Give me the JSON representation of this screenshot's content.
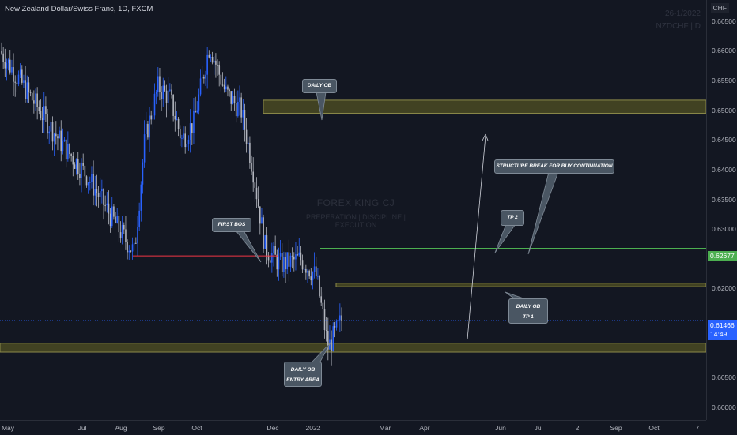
{
  "header": {
    "title": "New Zealand Dollar/Swiss Franc, 1D, FXCM",
    "currency": "CHF",
    "meta_date": "26-1/2022",
    "meta_symbol": "NZDCHF | D"
  },
  "watermark": {
    "name": "FOREX KING CJ",
    "tagline": "PREPERATION  |  DISCIPLINE  |  EXECUTION"
  },
  "annotations": {
    "daily_ob_top": "DAILY OB",
    "first_bos": "FIRST BOS",
    "structure_break": "STRUCTURE BREAK FOR BUY CONTINUATION",
    "tp2": "TP 2",
    "daily_ob_tp1_line1": "DAILY OB",
    "daily_ob_tp1_line2": "TP 1",
    "daily_ob_entry_line1": "DAILY OB",
    "daily_ob_entry_line2": "ENTRY AREA"
  },
  "price_tags": {
    "tp2_price": "0.62677",
    "last_price": "0.61466",
    "countdown": "14:49"
  },
  "colors": {
    "background": "#131722",
    "bull": "#2962ff",
    "bear": "#b2b5be",
    "zone_fill": "#4a4a22",
    "zone_border": "#8c8a4a",
    "tp_line": "#4caf50",
    "bos_line": "#f23645",
    "last_price": "#2962ff"
  },
  "chart_data": {
    "type": "candlestick",
    "title": "New Zealand Dollar/Swiss Franc, 1D, FXCM",
    "ylim": [
      0.6,
      0.667
    ],
    "y_ticks": [
      "0.66500",
      "0.66000",
      "0.65500",
      "0.65000",
      "0.64500",
      "0.64000",
      "0.63500",
      "0.63000",
      "0.62500",
      "0.62000",
      "0.60500",
      "0.60000"
    ],
    "x_ticks": [
      "May",
      "Jul",
      "Aug",
      "Sep",
      "Oct",
      "Dec",
      "2022",
      "Mar",
      "Apr",
      "Jun",
      "Jul",
      "2",
      "Sep",
      "Oct",
      "7"
    ],
    "price_path": [
      {
        "x": "May",
        "y": 0.66
      },
      {
        "x": "Jun",
        "y": 0.652
      },
      {
        "x": "Jul",
        "y": 0.644
      },
      {
        "x": "mid-Jul",
        "y": 0.639
      },
      {
        "x": "Aug",
        "y": 0.63
      },
      {
        "x": "mid-Aug",
        "y": 0.626
      },
      {
        "x": "late-Aug",
        "y": 0.645
      },
      {
        "x": "Sep",
        "y": 0.654
      },
      {
        "x": "mid-Sep",
        "y": 0.652
      },
      {
        "x": "late-Sep",
        "y": 0.645
      },
      {
        "x": "Oct",
        "y": 0.648
      },
      {
        "x": "mid-Oct",
        "y": 0.661
      },
      {
        "x": "early-Nov",
        "y": 0.653
      },
      {
        "x": "mid-Nov",
        "y": 0.65
      },
      {
        "x": "late-Nov",
        "y": 0.64
      },
      {
        "x": "Dec",
        "y": 0.627
      },
      {
        "x": "mid-Dec",
        "y": 0.624
      },
      {
        "x": "2022",
        "y": 0.625
      },
      {
        "x": "mid-Jan",
        "y": 0.622
      },
      {
        "x": "late-Jan",
        "y": 0.61
      },
      {
        "x": "late-Jan+",
        "y": 0.6147
      }
    ],
    "zones": [
      {
        "name": "Daily OB",
        "from": 0.6495,
        "to": 0.6517
      },
      {
        "name": "Daily OB / TP 1",
        "from": 0.6203,
        "to": 0.6209
      },
      {
        "name": "Daily OB / Entry Area",
        "from": 0.6093,
        "to": 0.6108
      }
    ],
    "levels": [
      {
        "name": "TP 2",
        "value": 0.62677
      },
      {
        "name": "First BOS",
        "value": 0.6255
      },
      {
        "name": "Last price",
        "value": 0.61466
      }
    ]
  }
}
